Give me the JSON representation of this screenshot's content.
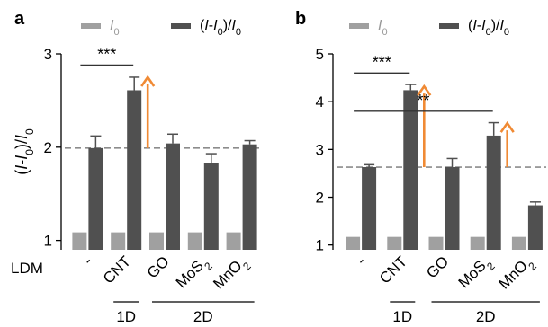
{
  "chart_data": [
    {
      "type": "bar",
      "panel_label": "a",
      "legend": [
        {
          "name": "I",
          "subscript": "0",
          "color": "#a0a0a0"
        },
        {
          "name": "(I-I",
          "subscript": "0",
          "suffix": ")/I",
          "suffix_subscript": "0",
          "color": "#505050"
        }
      ],
      "ylabel": "(I-I0)/I0",
      "row_label": "LDM",
      "ylim": [
        0.9,
        3.0
      ],
      "yticks": [
        1,
        2,
        3
      ],
      "categories": [
        {
          "label": "-"
        },
        {
          "label": "CNT"
        },
        {
          "label": "GO"
        },
        {
          "label": "MoS",
          "sub": "2"
        },
        {
          "label": "MnO",
          "sub": "2"
        }
      ],
      "groups": [
        {
          "label": "1D",
          "from": 1,
          "to": 1
        },
        {
          "label": "2D",
          "from": 2,
          "to": 4
        }
      ],
      "series": [
        {
          "name": "I0",
          "values": [
            1,
            1,
            1,
            1,
            1
          ],
          "errors": [
            0,
            0,
            0,
            0,
            0
          ]
        },
        {
          "name": "(I-I0)/I0",
          "values": [
            1.99,
            2.61,
            2.04,
            1.83,
            2.03
          ],
          "errors": [
            0.13,
            0.14,
            0.1,
            0.1,
            0.04
          ]
        }
      ],
      "reference_line": 1.99,
      "arrows": [
        {
          "category": 1,
          "from": 1.99,
          "to": 2.75
        }
      ],
      "significance": [
        {
          "from": 0,
          "to": 1,
          "y": 2.88,
          "label": "***"
        }
      ]
    },
    {
      "type": "bar",
      "panel_label": "b",
      "legend": [
        {
          "name": "I",
          "subscript": "0",
          "color": "#a0a0a0"
        },
        {
          "name": "(I-I",
          "subscript": "0",
          "suffix": ")/I",
          "suffix_subscript": "0",
          "color": "#505050"
        }
      ],
      "ylabel": "",
      "row_label": "",
      "ylim": [
        0.9,
        5.0
      ],
      "yticks": [
        1,
        2,
        3,
        4,
        5
      ],
      "categories": [
        {
          "label": "-"
        },
        {
          "label": "CNT"
        },
        {
          "label": "GO"
        },
        {
          "label": "MoS",
          "sub": "2"
        },
        {
          "label": "MnO",
          "sub": "2"
        }
      ],
      "groups": [
        {
          "label": "1D",
          "from": 1,
          "to": 1
        },
        {
          "label": "2D",
          "from": 2,
          "to": 4
        }
      ],
      "series": [
        {
          "name": "I0",
          "values": [
            1,
            1,
            1,
            1,
            1
          ],
          "errors": [
            0,
            0,
            0,
            0,
            0
          ]
        },
        {
          "name": "(I-I0)/I0",
          "values": [
            2.63,
            4.24,
            2.63,
            3.29,
            1.83
          ],
          "errors": [
            0.05,
            0.12,
            0.18,
            0.27,
            0.07
          ]
        }
      ],
      "reference_line": 2.63,
      "arrows": [
        {
          "category": 1,
          "from": 2.63,
          "to": 4.32
        },
        {
          "category": 3,
          "from": 2.63,
          "to": 3.55
        }
      ],
      "significance": [
        {
          "from": 0,
          "to": 1,
          "y": 4.6,
          "label": "***"
        },
        {
          "from": 0,
          "to": 3,
          "y": 3.8,
          "label": "**"
        }
      ]
    }
  ],
  "colors": {
    "light_bar": "#a0a0a0",
    "dark_bar": "#505050",
    "reference_line": "#8c8c8c",
    "arrow": "#f08a34",
    "axis": "#000000"
  }
}
